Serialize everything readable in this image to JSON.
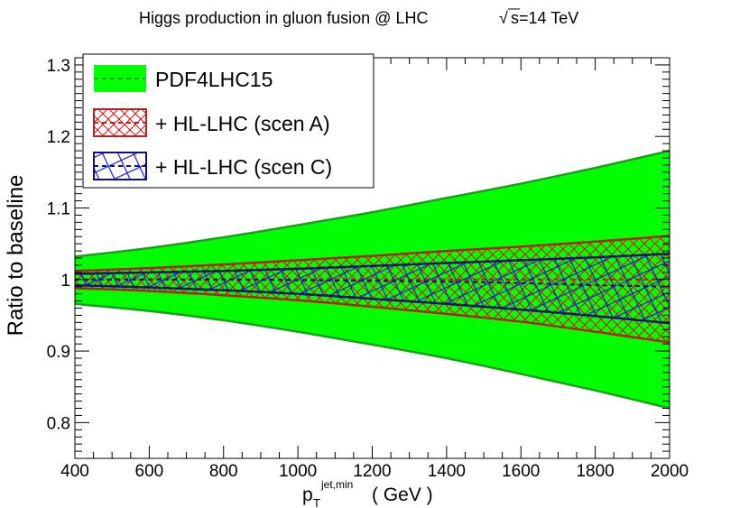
{
  "chart_data": {
    "type": "area",
    "title": "Higgs production in gluon fusion @ LHC",
    "title_sqrt_symbol": "√",
    "title_energy": "s=14 TeV",
    "xlabel_main": "p",
    "xlabel_sub": "T",
    "xlabel_sup": "jet,min",
    "xlabel_unit": "( GeV )",
    "ylabel": "Ratio to baseline",
    "xlim": [
      400,
      2000
    ],
    "ylim": [
      0.75,
      1.31
    ],
    "x_ticks": [
      400,
      600,
      800,
      1000,
      1200,
      1400,
      1600,
      1800,
      2000
    ],
    "x_tick_labels": [
      "400",
      "600",
      "800",
      "1000",
      "1200",
      "1400",
      "1600",
      "1800",
      "2000"
    ],
    "y_ticks": [
      0.8,
      0.9,
      1.0,
      1.1,
      1.2,
      1.3
    ],
    "y_tick_labels": [
      "0.8",
      "0.9",
      "1",
      "1.1",
      "1.2",
      "1.3"
    ],
    "grid": false,
    "legend_position": "top-left",
    "x": [
      400,
      600,
      800,
      1000,
      1200,
      1400,
      1600,
      1800,
      2000
    ],
    "series": [
      {
        "name": "PDF4LHC15",
        "fill": "#00ff00",
        "edge": "#1e9e1e",
        "pattern": "solid",
        "central": [
          1.0,
          1.0,
          1.0,
          1.0,
          1.0,
          1.0,
          1.0,
          1.0,
          1.0
        ],
        "upper": [
          1.032,
          1.044,
          1.059,
          1.076,
          1.094,
          1.114,
          1.134,
          1.156,
          1.18
        ],
        "lower": [
          0.966,
          0.956,
          0.943,
          0.927,
          0.909,
          0.89,
          0.868,
          0.845,
          0.82
        ]
      },
      {
        "name": "+ HL-LHC (scen A)",
        "fill": "#ff0000",
        "edge": "#b52020",
        "pattern": "crosshatch",
        "central": [
          1.0,
          1.0,
          1.0,
          1.0,
          1.0,
          1.0,
          1.0,
          1.0,
          1.0
        ],
        "upper": [
          1.012,
          1.016,
          1.021,
          1.027,
          1.033,
          1.04,
          1.046,
          1.053,
          1.061
        ],
        "lower": [
          0.988,
          0.984,
          0.978,
          0.971,
          0.962,
          0.952,
          0.941,
          0.927,
          0.912
        ]
      },
      {
        "name": "+ HL-LHC (scen C)",
        "fill": "#0000ff",
        "edge": "#10107a",
        "pattern": "diagonal",
        "central": [
          1.0,
          1.0,
          1.0,
          0.999,
          0.998,
          0.997,
          0.995,
          0.992,
          0.99
        ],
        "upper": [
          1.008,
          1.01,
          1.012,
          1.015,
          1.019,
          1.023,
          1.027,
          1.031,
          1.036
        ],
        "lower": [
          0.992,
          0.989,
          0.985,
          0.98,
          0.973,
          0.966,
          0.958,
          0.949,
          0.939
        ]
      }
    ]
  }
}
